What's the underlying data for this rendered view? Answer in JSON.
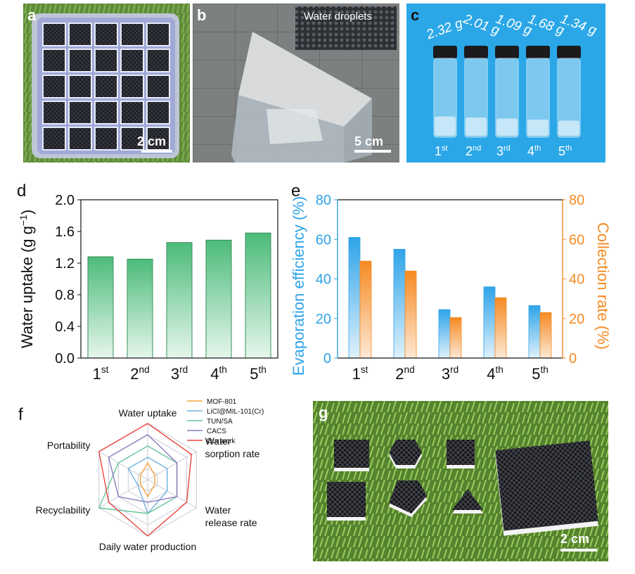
{
  "panel_a": {
    "label": "a",
    "scale": "2 cm"
  },
  "panel_b": {
    "label": "b",
    "scale": "5 cm",
    "inset_label": "Water droplets"
  },
  "panel_c": {
    "label": "c",
    "masses": [
      "2.32 g",
      "2.01 g",
      "1.09 g",
      "1.68 g",
      "1.34 g"
    ],
    "cycles": [
      {
        "n": "1",
        "sup": "st"
      },
      {
        "n": "2",
        "sup": "nd"
      },
      {
        "n": "3",
        "sup": "rd"
      },
      {
        "n": "4",
        "sup": "th"
      },
      {
        "n": "5",
        "sup": "th"
      }
    ]
  },
  "panel_g": {
    "label": "g",
    "scale": "2 cm"
  },
  "chart_data": [
    {
      "panel": "d",
      "type": "bar",
      "categories": [
        {
          "n": "1",
          "sup": "st"
        },
        {
          "n": "2",
          "sup": "nd"
        },
        {
          "n": "3",
          "sup": "rd"
        },
        {
          "n": "4",
          "sup": "th"
        },
        {
          "n": "5",
          "sup": "th"
        }
      ],
      "values": [
        1.28,
        1.25,
        1.46,
        1.49,
        1.58
      ],
      "ylabel": "Water uptake (g g",
      "ylabel_sup": "−1",
      "ylabel_tail": ")",
      "ylim": [
        0,
        2.0
      ],
      "yticks": [
        "0.0",
        "0.4",
        "0.8",
        "1.2",
        "1.6",
        "2.0"
      ],
      "color": "#4cbb7a"
    },
    {
      "panel": "e",
      "type": "bar",
      "categories": [
        {
          "n": "1",
          "sup": "st"
        },
        {
          "n": "2",
          "sup": "nd"
        },
        {
          "n": "3",
          "sup": "rd"
        },
        {
          "n": "4",
          "sup": "th"
        },
        {
          "n": "5",
          "sup": "th"
        }
      ],
      "series": [
        {
          "values": [
            61,
            55,
            24.5,
            36,
            26.5
          ],
          "color": "#2ea3e8",
          "axis": "left"
        },
        {
          "values": [
            49,
            44,
            20.5,
            30.5,
            23
          ],
          "color": "#f58a22",
          "axis": "right"
        }
      ],
      "ylabel_left": "Evaporation efficiency (%)",
      "ylabel_right": "Collection rate (%)",
      "ylim": [
        0,
        80
      ],
      "yticks": [
        "0",
        "20",
        "40",
        "60",
        "80"
      ]
    },
    {
      "panel": "f",
      "type": "radar",
      "axes": [
        "Water uptake",
        "Water sorption rate",
        "Water release rate",
        "Daily water production",
        "Recyclability",
        "Portability"
      ],
      "axis_label_lines": [
        [
          "Water uptake"
        ],
        [
          "Water",
          "sorption rate"
        ],
        [
          "Water",
          "release rate"
        ],
        [
          "Daily water production"
        ],
        [
          "Recyclability"
        ],
        [
          "Portability"
        ]
      ],
      "series": [
        {
          "name": "MOF-801",
          "color": "#f7a541",
          "values": [
            0.3,
            0.15,
            0.15,
            0.3,
            0.15,
            0.15
          ]
        },
        {
          "name": "LiCl@MIL-101(Cr)",
          "color": "#6fb3e0",
          "values": [
            0.4,
            0.4,
            0.4,
            0.6,
            0.2,
            0.4
          ]
        },
        {
          "name": "TUN/SA",
          "color": "#67c59a",
          "values": [
            0.6,
            0.6,
            0.6,
            0.6,
            1.0,
            0.6
          ]
        },
        {
          "name": "CACS",
          "color": "#8e7bbf",
          "values": [
            0.8,
            0.6,
            0.6,
            0.4,
            0.6,
            0.8
          ]
        },
        {
          "name": "Our work",
          "color": "#e8453c",
          "values": [
            1.0,
            0.9,
            0.8,
            1.0,
            0.8,
            1.0
          ]
        }
      ],
      "rings": 5
    }
  ]
}
